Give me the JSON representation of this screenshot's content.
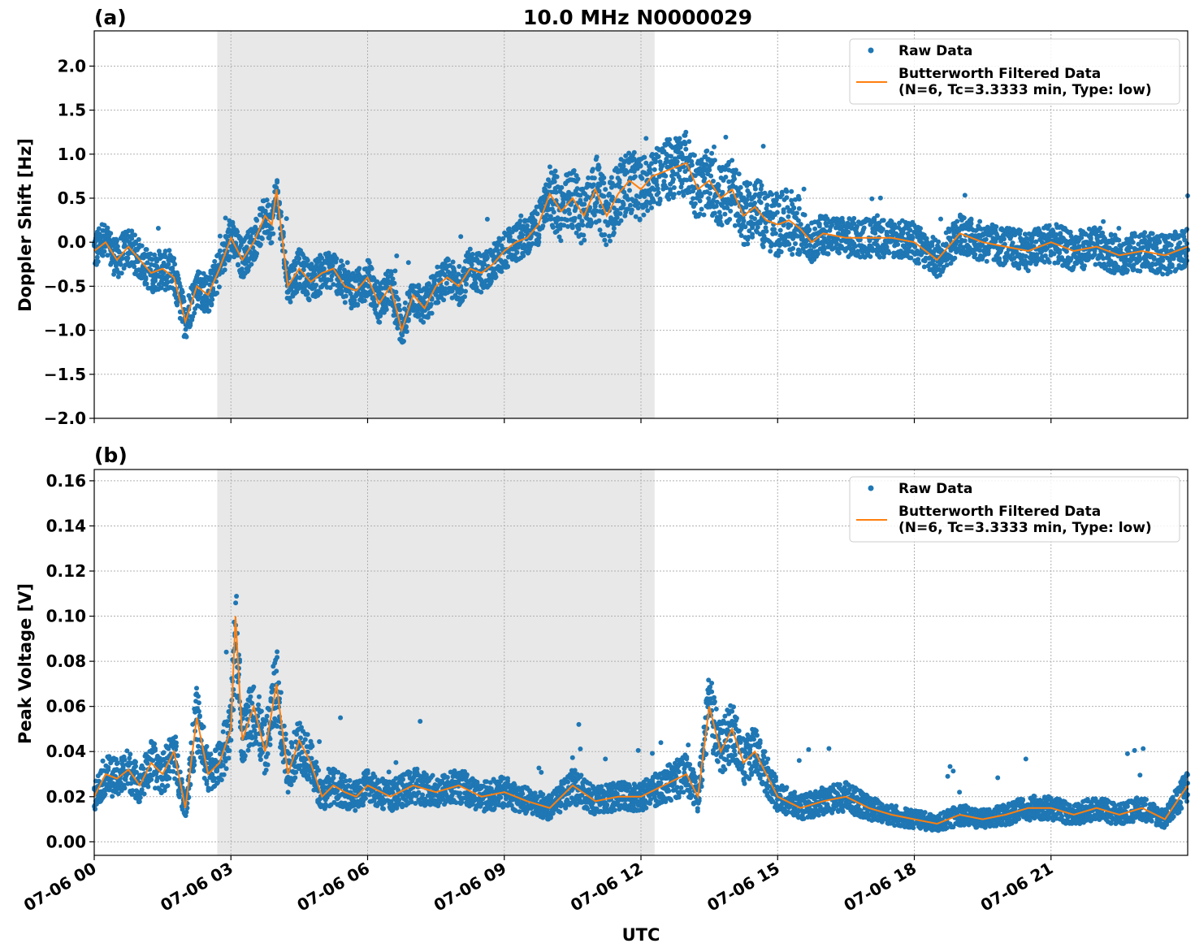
{
  "figure": {
    "title": "10.0 MHz N0000029",
    "xlabel": "UTC",
    "x_ticks": [
      "07-06 00",
      "07-06 03",
      "07-06 06",
      "07-06 09",
      "07-06 12",
      "07-06 15",
      "07-06 18",
      "07-06 21"
    ],
    "legend": {
      "raw": "Raw Data",
      "filtered_line1": "Butterworth Filtered Data",
      "filtered_line2": "(N=6, Tc=3.3333 min, Type: low)"
    },
    "colors": {
      "raw": "#1f77b4",
      "filtered": "#ff7f0e",
      "shade": "#e8e8e8",
      "grid": "#b0b0b0"
    }
  },
  "chart_data": [
    {
      "type": "scatter",
      "panel": "(a)",
      "title": "10.0 MHz N0000029",
      "xlabel": "",
      "ylabel": "Doppler Shift [Hz]",
      "x_unit": "hours UTC on 07-06",
      "xlim": [
        0,
        24
      ],
      "ylim": [
        -2.0,
        2.4
      ],
      "y_ticks": [
        "2.0",
        "1.5",
        "1.0",
        "0.5",
        "0.0",
        "−0.5",
        "−1.0",
        "−1.5",
        "−2.0"
      ],
      "y_tick_values": [
        2.0,
        1.5,
        1.0,
        0.5,
        0.0,
        -0.5,
        -1.0,
        -1.5,
        -2.0
      ],
      "shaded_region": [
        2.7,
        12.3
      ],
      "grid": true,
      "legend_position": "top-right",
      "series": [
        {
          "name": "Butterworth Filtered Data",
          "kind": "line",
          "x": [
            0,
            0.25,
            0.5,
            0.75,
            1.0,
            1.25,
            1.5,
            1.75,
            2.0,
            2.25,
            2.5,
            2.75,
            3.0,
            3.25,
            3.5,
            3.75,
            3.9,
            4.0,
            4.25,
            4.5,
            4.75,
            5.0,
            5.25,
            5.5,
            5.75,
            6.0,
            6.25,
            6.5,
            6.75,
            7.0,
            7.25,
            7.5,
            7.75,
            8.0,
            8.25,
            8.5,
            8.75,
            9.0,
            9.25,
            9.5,
            9.75,
            10.0,
            10.25,
            10.5,
            10.75,
            11.0,
            11.25,
            11.5,
            11.75,
            12.0,
            12.25,
            12.5,
            12.75,
            13.0,
            13.25,
            13.5,
            13.75,
            14.0,
            14.25,
            14.5,
            14.75,
            15.0,
            15.25,
            15.5,
            15.75,
            16.0,
            16.5,
            17.0,
            17.5,
            18.0,
            18.5,
            19.0,
            19.5,
            20.0,
            20.5,
            21.0,
            21.5,
            22.0,
            22.5,
            23.0,
            23.5,
            24.0
          ],
          "y": [
            -0.1,
            0.0,
            -0.2,
            -0.05,
            -0.2,
            -0.35,
            -0.3,
            -0.4,
            -0.9,
            -0.5,
            -0.6,
            -0.3,
            0.05,
            -0.2,
            0.0,
            0.3,
            0.2,
            0.6,
            -0.5,
            -0.3,
            -0.45,
            -0.35,
            -0.3,
            -0.5,
            -0.55,
            -0.4,
            -0.7,
            -0.5,
            -1.0,
            -0.6,
            -0.75,
            -0.5,
            -0.4,
            -0.5,
            -0.3,
            -0.35,
            -0.25,
            -0.1,
            0.0,
            0.05,
            0.2,
            0.55,
            0.35,
            0.5,
            0.3,
            0.6,
            0.3,
            0.55,
            0.7,
            0.6,
            0.75,
            0.8,
            0.85,
            0.9,
            0.6,
            0.7,
            0.5,
            0.6,
            0.3,
            0.4,
            0.25,
            0.2,
            0.25,
            0.15,
            0.0,
            0.1,
            0.05,
            0.05,
            0.05,
            0.0,
            -0.2,
            0.1,
            0.0,
            -0.05,
            -0.1,
            0.0,
            -0.1,
            -0.05,
            -0.15,
            -0.1,
            -0.15,
            -0.05
          ]
        },
        {
          "name": "Raw Data",
          "kind": "points",
          "note_values": "spread around filtered series"
        }
      ]
    },
    {
      "type": "scatter",
      "panel": "(b)",
      "xlabel": "UTC",
      "ylabel": "Peak Voltage [V]",
      "x_unit": "hours UTC on 07-06",
      "xlim": [
        0,
        24
      ],
      "ylim": [
        -0.006,
        0.165
      ],
      "y_ticks": [
        "0.16",
        "0.14",
        "0.12",
        "0.10",
        "0.08",
        "0.06",
        "0.04",
        "0.02",
        "0.00"
      ],
      "y_tick_values": [
        0.16,
        0.14,
        0.12,
        0.1,
        0.08,
        0.06,
        0.04,
        0.02,
        0.0
      ],
      "shaded_region": [
        2.7,
        12.3
      ],
      "grid": true,
      "legend_position": "top-right",
      "series": [
        {
          "name": "Butterworth Filtered Data",
          "kind": "line",
          "x": [
            0,
            0.25,
            0.5,
            0.75,
            1.0,
            1.25,
            1.5,
            1.75,
            2.0,
            2.25,
            2.5,
            2.75,
            3.0,
            3.1,
            3.25,
            3.5,
            3.75,
            4.0,
            4.25,
            4.5,
            4.75,
            5.0,
            5.25,
            5.5,
            5.75,
            6.0,
            6.5,
            7.0,
            7.5,
            8.0,
            8.5,
            9.0,
            9.5,
            10.0,
            10.5,
            11.0,
            11.5,
            12.0,
            12.5,
            13.0,
            13.25,
            13.5,
            13.75,
            14.0,
            14.25,
            14.5,
            14.75,
            15.0,
            15.5,
            16.0,
            16.5,
            17.0,
            17.5,
            18.0,
            18.5,
            19.0,
            19.5,
            20.0,
            20.5,
            21.0,
            21.5,
            22.0,
            22.5,
            23.0,
            23.5,
            24.0
          ],
          "y": [
            0.02,
            0.03,
            0.028,
            0.032,
            0.025,
            0.035,
            0.03,
            0.04,
            0.015,
            0.055,
            0.03,
            0.035,
            0.05,
            0.1,
            0.045,
            0.06,
            0.04,
            0.07,
            0.03,
            0.045,
            0.035,
            0.02,
            0.025,
            0.022,
            0.02,
            0.025,
            0.02,
            0.025,
            0.022,
            0.025,
            0.02,
            0.022,
            0.018,
            0.015,
            0.025,
            0.018,
            0.02,
            0.02,
            0.025,
            0.03,
            0.02,
            0.06,
            0.04,
            0.05,
            0.035,
            0.04,
            0.03,
            0.02,
            0.015,
            0.018,
            0.02,
            0.015,
            0.012,
            0.01,
            0.008,
            0.012,
            0.01,
            0.012,
            0.015,
            0.015,
            0.012,
            0.015,
            0.012,
            0.015,
            0.01,
            0.025
          ]
        },
        {
          "name": "Raw Data",
          "kind": "points",
          "note_values": "spread around filtered series"
        }
      ]
    }
  ]
}
